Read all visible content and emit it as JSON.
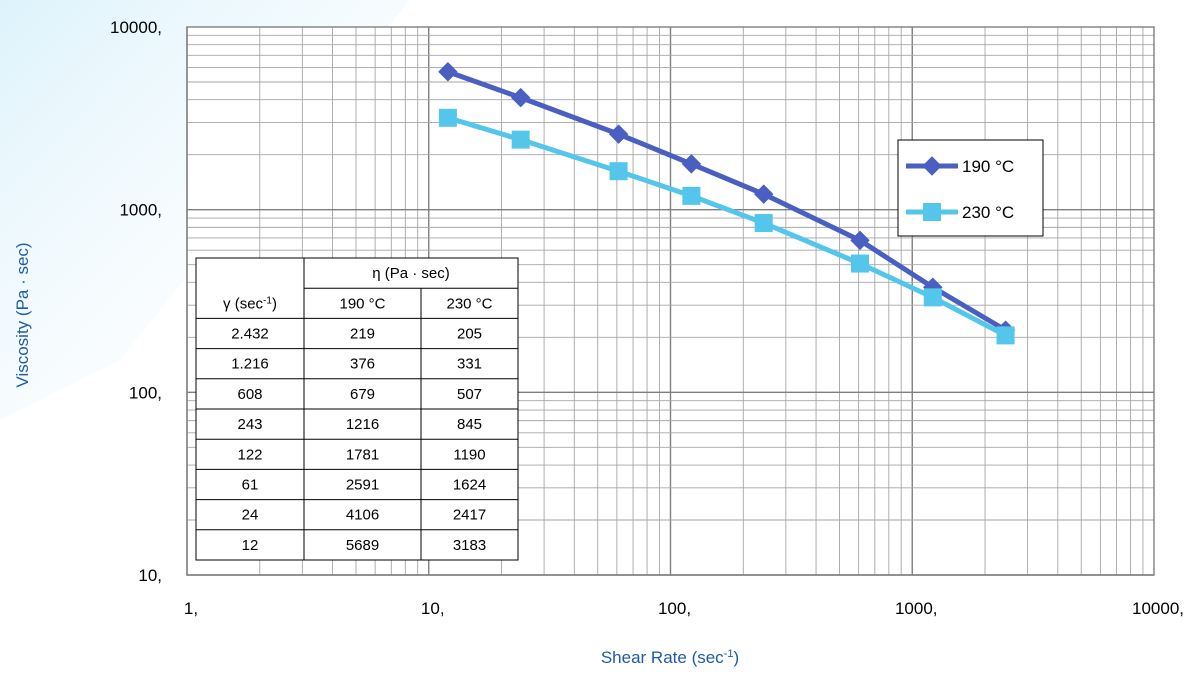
{
  "chart_data": {
    "type": "line",
    "xscale": "log",
    "yscale": "log",
    "xlim": [
      1,
      10000
    ],
    "ylim": [
      10,
      10000
    ],
    "xticks": [
      "1,",
      "10,",
      "100,",
      "1000,",
      "10000,"
    ],
    "yticks": [
      "10,",
      "100,",
      "1000,",
      "10000,"
    ],
    "xlabel": "Shear Rate (sec-1)",
    "xlabel_base": "Shear Rate (sec",
    "xlabel_sup": "-1",
    "xlabel_end": ")",
    "ylabel": "Viscosity (Pa · sec)",
    "grid": true,
    "legend_position": "right",
    "series": [
      {
        "name": "190 °C",
        "color": "#4a5fc1",
        "marker": "diamond",
        "points": [
          [
            12,
            5689
          ],
          [
            24,
            4106
          ],
          [
            61,
            2591
          ],
          [
            122,
            1781
          ],
          [
            243,
            1216
          ],
          [
            608,
            679
          ],
          [
            1216,
            376
          ],
          [
            2432,
            219
          ]
        ]
      },
      {
        "name": "230 °C",
        "color": "#54c6ec",
        "marker": "square",
        "points": [
          [
            12,
            3183
          ],
          [
            24,
            2417
          ],
          [
            61,
            1624
          ],
          [
            122,
            1190
          ],
          [
            243,
            845
          ],
          [
            608,
            507
          ],
          [
            1216,
            331
          ],
          [
            2432,
            205
          ]
        ]
      }
    ],
    "table": {
      "header_group": "η (Pa · sec)",
      "col_gamma": "γ (sec",
      "col_gamma_sup": "-1",
      "col_gamma_end": ")",
      "col_190": "190 °C",
      "col_230": "230 °C",
      "rows": [
        [
          "2.432",
          "219",
          "205"
        ],
        [
          "1.216",
          "376",
          "331"
        ],
        [
          "608",
          "679",
          "507"
        ],
        [
          "243",
          "1216",
          "845"
        ],
        [
          "122",
          "1781",
          "1190"
        ],
        [
          "61",
          "2591",
          "1624"
        ],
        [
          "24",
          "4106",
          "2417"
        ],
        [
          "12",
          "5689",
          "3183"
        ]
      ]
    }
  }
}
